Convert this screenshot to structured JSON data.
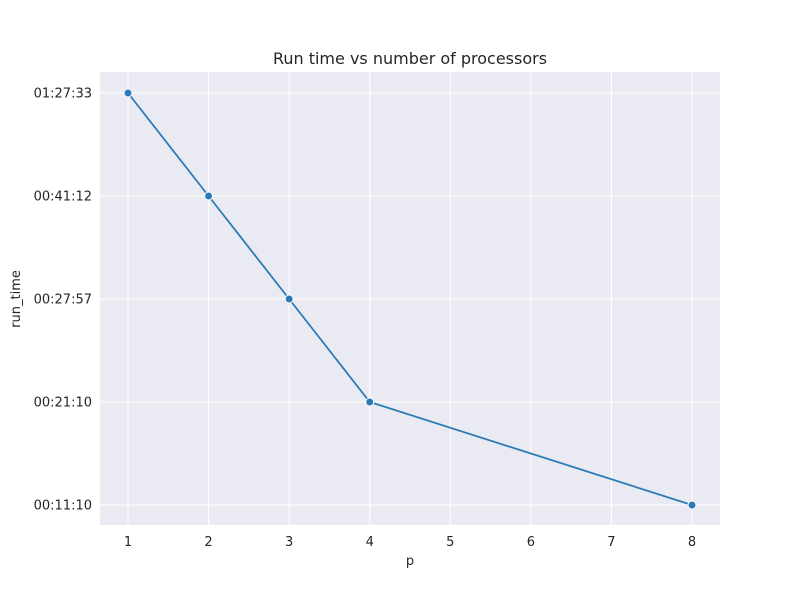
{
  "chart_data": {
    "type": "line",
    "title": "Run time vs number of processors",
    "xlabel": "p",
    "ylabel": "run_time",
    "x_ticks": [
      "1",
      "2",
      "3",
      "4",
      "5",
      "6",
      "7",
      "8"
    ],
    "y_ticks": [
      "00:11:10",
      "00:21:10",
      "00:27:57",
      "00:41:12",
      "01:27:33"
    ],
    "y_scale": "categorical-ordinal",
    "series": [
      {
        "color": "#2c7bb6",
        "points": [
          {
            "x": "1",
            "y": "01:27:33"
          },
          {
            "x": "2",
            "y": "00:41:12"
          },
          {
            "x": "3",
            "y": "00:27:57"
          },
          {
            "x": "4",
            "y": "00:21:10"
          },
          {
            "x": "8",
            "y": "00:11:10"
          }
        ]
      }
    ],
    "grid": true,
    "background": "#eaeaf2"
  }
}
